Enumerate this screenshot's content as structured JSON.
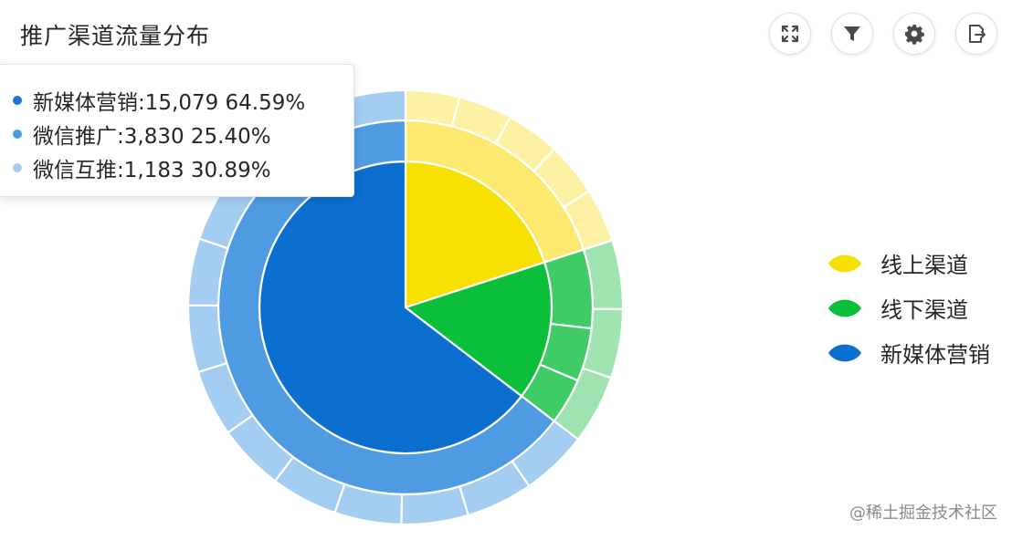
{
  "title": "推广渠道流量分布",
  "toolbar": [
    {
      "name": "fullscreen-icon"
    },
    {
      "name": "filter-icon"
    },
    {
      "name": "gear-icon"
    },
    {
      "name": "export-icon"
    }
  ],
  "tooltip": {
    "rows": [
      {
        "label": "新媒体营销:15,079 64.59%",
        "color": "#1477d2"
      },
      {
        "label": "微信推广:3,830 25.40%",
        "color": "#4f9be2"
      },
      {
        "label": "微信互推:1,183 30.89%",
        "color": "#a4cdf2"
      }
    ]
  },
  "legend": [
    {
      "label": "线上渠道",
      "color": "#f5e100"
    },
    {
      "label": "线下渠道",
      "color": "#0bbf3a"
    },
    {
      "label": "新媒体营销",
      "color": "#0a6fcf"
    }
  ],
  "watermark": "@稀土掘金技术社区",
  "chart_data": {
    "type": "sunburst",
    "title": "推广渠道流量分布",
    "legend_position": "right",
    "levels": [
      {
        "ring": "inner",
        "segments": [
          {
            "name": "线上渠道",
            "share": 0.2,
            "color": "#f8e100"
          },
          {
            "name": "线下渠道",
            "share": 0.154,
            "color": "#0bbf3a"
          },
          {
            "name": "新媒体营销",
            "share": 0.646,
            "color": "#0a6fcf"
          }
        ]
      },
      {
        "ring": "middle",
        "segments": [
          {
            "parent": "线上渠道",
            "share": 0.2,
            "color": "#fde870"
          },
          {
            "parent": "线下渠道",
            "share": 0.068,
            "color": "#3fcc66"
          },
          {
            "parent": "线下渠道",
            "share": 0.046,
            "color": "#3fcc66"
          },
          {
            "parent": "线下渠道",
            "share": 0.04,
            "color": "#3fcc66"
          },
          {
            "parent": "新媒体营销",
            "share": 0.646,
            "color": "#4f9be2"
          }
        ]
      },
      {
        "ring": "outer",
        "segments": [
          {
            "parent": "线上渠道",
            "share": 0.2,
            "color": "#fdf1a4",
            "pieces": 5
          },
          {
            "parent": "线下渠道",
            "share": 0.154,
            "color": "#9fe3b0",
            "pieces": 3
          },
          {
            "parent": "新媒体营销",
            "share": 0.646,
            "color": "#a4cdf2",
            "pieces": 13
          }
        ]
      }
    ]
  }
}
